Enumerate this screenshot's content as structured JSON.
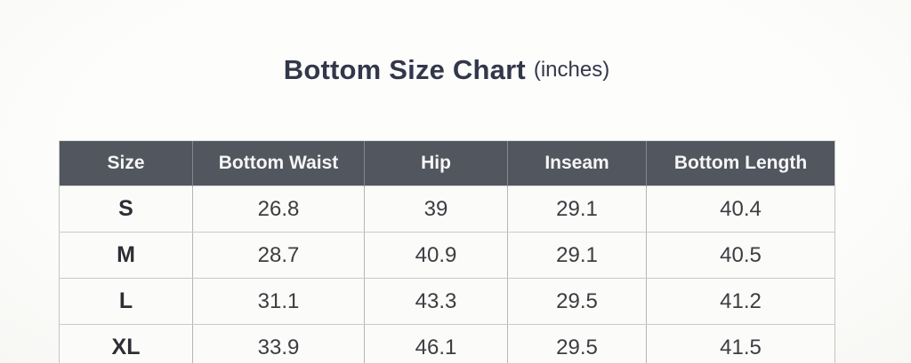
{
  "page": {
    "background_color": "#fcfcfa"
  },
  "title": {
    "main": "Bottom Size Chart",
    "suffix": "(inches)",
    "color": "#33374a"
  },
  "table": {
    "header_bg_color": "#51565f",
    "header_text_color": "#f6f6f6",
    "body_bg_color": "#fbfbf9",
    "size_text_color": "#2d2e34",
    "value_text_color": "#3c3d42"
  },
  "chart_data": {
    "type": "table",
    "title": "Bottom Size Chart (inches)",
    "columns": [
      "Size",
      "Bottom Waist",
      "Hip",
      "Inseam",
      "Bottom Length"
    ],
    "rows": [
      [
        "S",
        "26.8",
        "39",
        "29.1",
        "40.4"
      ],
      [
        "M",
        "28.7",
        "40.9",
        "29.1",
        "40.5"
      ],
      [
        "L",
        "31.1",
        "43.3",
        "29.5",
        "41.2"
      ],
      [
        "XL",
        "33.9",
        "46.1",
        "29.5",
        "41.5"
      ]
    ]
  }
}
